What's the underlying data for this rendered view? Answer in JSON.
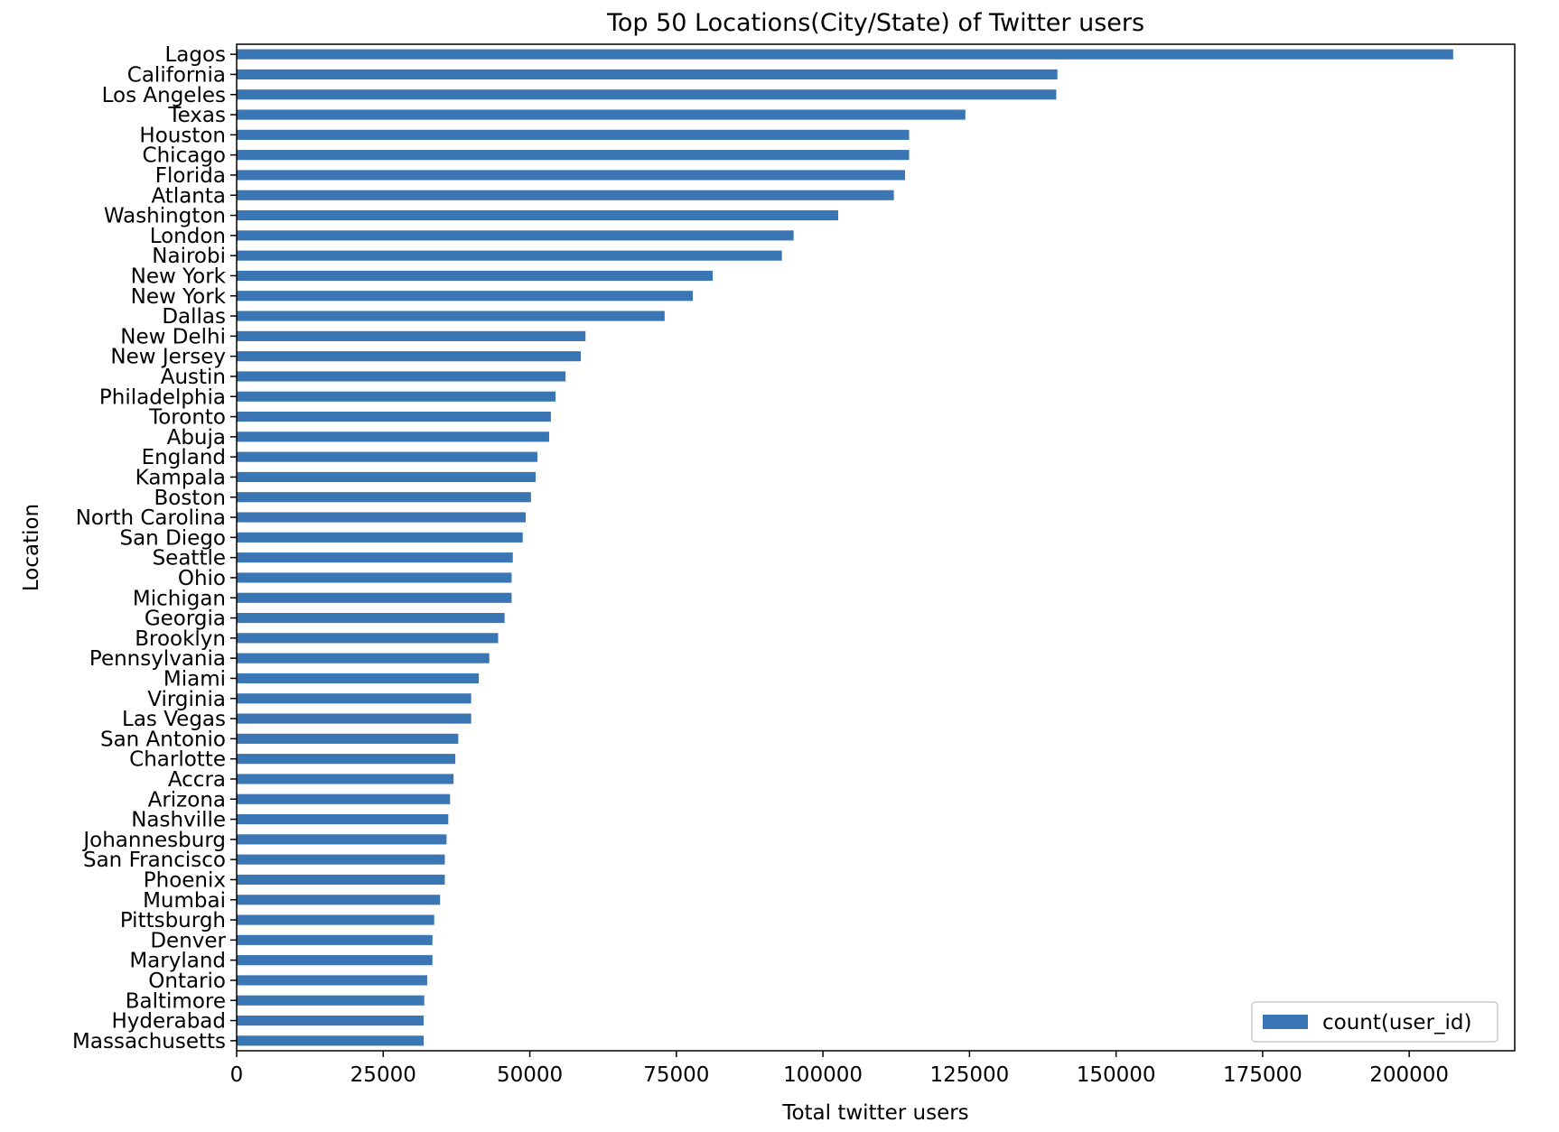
{
  "chart_data": {
    "type": "bar",
    "orientation": "horizontal",
    "title": "Top 50 Locations(City/State) of Twitter users",
    "xlabel": "Total twitter users",
    "ylabel": "Location",
    "xlim": [
      0,
      218000
    ],
    "xticks": [
      "0",
      "25000",
      "50000",
      "75000",
      "100000",
      "125000",
      "150000",
      "175000",
      "200000"
    ],
    "xtick_values": [
      0,
      25000,
      50000,
      75000,
      100000,
      125000,
      150000,
      175000,
      200000
    ],
    "grid": false,
    "legend_position": "lower-right",
    "bar_color": "#3a76b4",
    "categories": [
      "Lagos",
      "California",
      "Los Angeles",
      "Texas",
      "Houston",
      "Chicago",
      "Florida",
      "Atlanta",
      "Washington",
      "London",
      "Nairobi",
      "New York",
      "New York",
      "Dallas",
      "New Delhi",
      "New Jersey",
      "Austin",
      "Philadelphia",
      "Toronto",
      "Abuja",
      "England",
      "Kampala",
      "Boston",
      "North Carolina",
      "San Diego",
      "Seattle",
      "Ohio",
      "Michigan",
      "Georgia",
      "Brooklyn",
      "Pennsylvania",
      "Miami",
      "Virginia",
      "Las Vegas",
      "San Antonio",
      "Charlotte",
      "Accra",
      "Arizona",
      "Nashville",
      "Johannesburg",
      "San Francisco",
      "Phoenix",
      "Mumbai",
      "Pittsburgh",
      "Denver",
      "Maryland",
      "Ontario",
      "Baltimore",
      "Hyderabad",
      "Massachusetts"
    ],
    "series": [
      {
        "name": "count(user_id)",
        "values": [
          207500,
          140000,
          139800,
          124300,
          114700,
          114700,
          114000,
          112100,
          102600,
          95000,
          93000,
          81200,
          77800,
          73000,
          59500,
          58700,
          56100,
          54400,
          53600,
          53300,
          51300,
          51000,
          50200,
          49300,
          48800,
          47100,
          46900,
          46900,
          45700,
          44600,
          43100,
          41300,
          40000,
          40000,
          37800,
          37300,
          37000,
          36400,
          36100,
          35800,
          35500,
          35500,
          34700,
          33700,
          33400,
          33400,
          32500,
          32000,
          31900,
          31900
        ]
      }
    ]
  }
}
